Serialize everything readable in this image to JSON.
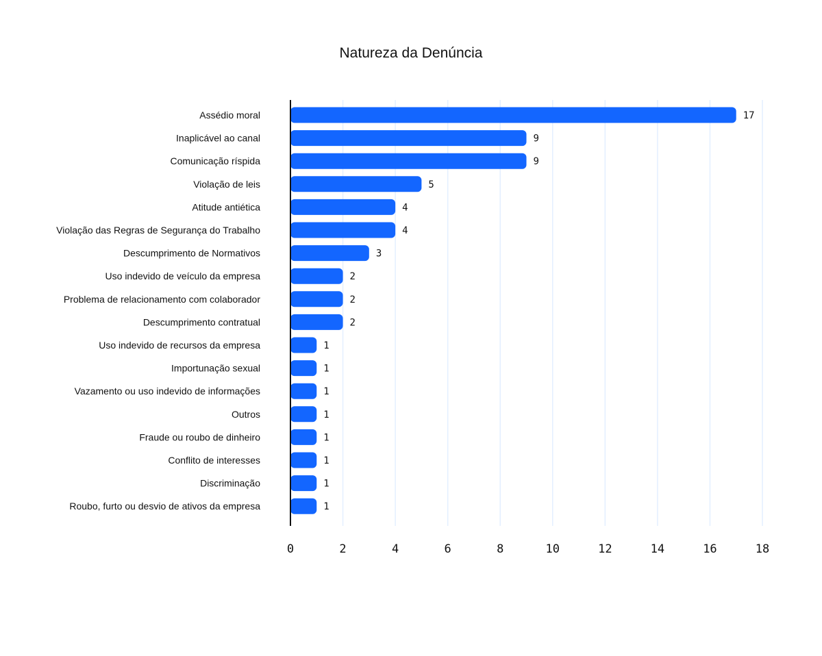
{
  "chart_data": {
    "type": "bar",
    "orientation": "horizontal",
    "title": "Natureza da Denúncia",
    "xlabel": "",
    "ylabel": "",
    "categories": [
      "Assédio moral",
      "Inaplicável ao canal",
      "Comunicação ríspida",
      "Violação de leis",
      "Atitude antiética",
      "Violação das Regras de Segurança do Trabalho",
      "Descumprimento de Normativos",
      "Uso indevido de veículo da empresa",
      "Problema de relacionamento com colaborador",
      "Descumprimento contratual",
      "Uso indevido de recursos da empresa",
      "Importunação sexual",
      "Vazamento ou uso indevido de informações",
      "Outros",
      "Fraude ou roubo de dinheiro",
      "Conflito de interesses",
      "Discriminação",
      "Roubo, furto ou desvio de ativos da empresa"
    ],
    "values": [
      17,
      9,
      9,
      5,
      4,
      4,
      3,
      2,
      2,
      2,
      1,
      1,
      1,
      1,
      1,
      1,
      1,
      1
    ],
    "xlim": [
      0,
      18
    ],
    "xticks": [
      0,
      2,
      4,
      6,
      8,
      10,
      12,
      14,
      16,
      18
    ],
    "grid": true,
    "legend": "none",
    "colors": {
      "bar": "#1366ff",
      "grid": "#e3efff",
      "text": "#111111"
    }
  }
}
